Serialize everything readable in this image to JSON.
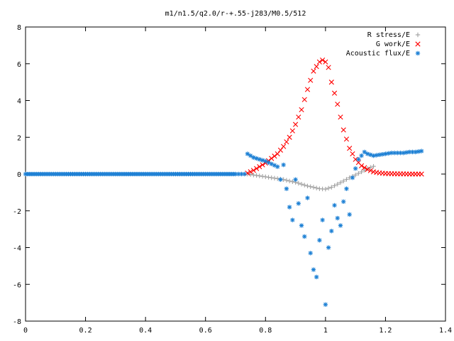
{
  "chart_data": {
    "type": "scatter",
    "title": "m1/n1.5/q2.0/r-+.55-j283/M0.5/512",
    "xlabel": "",
    "ylabel": "",
    "xlim": [
      0,
      1.4
    ],
    "ylim": [
      -8,
      8
    ],
    "x_ticks": [
      "0",
      "0.2",
      "0.4",
      "0.6",
      "0.8",
      "1",
      "1.2",
      "1.4"
    ],
    "y_ticks": [
      "8",
      "6",
      "4",
      "2",
      "0",
      "-2",
      "-4",
      "-6",
      "-8"
    ],
    "grid": false,
    "legend_position": "top-right",
    "series": [
      {
        "name": "R stress/E",
        "marker": "plus",
        "color": "#a0a0a0",
        "x": [
          0.74,
          0.76,
          0.78,
          0.8,
          0.82,
          0.84,
          0.86,
          0.88,
          0.9,
          0.92,
          0.94,
          0.96,
          0.98,
          1.0,
          1.02,
          1.04,
          1.06,
          1.08,
          1.1,
          1.12,
          1.14,
          1.16
        ],
        "y": [
          0.0,
          -0.05,
          -0.1,
          -0.15,
          -0.2,
          -0.25,
          -0.3,
          -0.38,
          -0.45,
          -0.55,
          -0.65,
          -0.72,
          -0.8,
          -0.82,
          -0.72,
          -0.55,
          -0.38,
          -0.2,
          -0.05,
          0.12,
          0.3,
          0.42
        ]
      },
      {
        "name": "G work/E",
        "marker": "cross",
        "color": "#ff0000",
        "x": [
          0.74,
          0.76,
          0.78,
          0.8,
          0.82,
          0.84,
          0.86,
          0.88,
          0.9,
          0.92,
          0.94,
          0.96,
          0.98,
          0.99,
          1.0,
          1.01,
          1.02,
          1.04,
          1.06,
          1.08,
          1.1,
          1.12,
          1.14,
          1.16,
          1.18,
          1.2,
          1.22,
          1.24,
          1.26,
          1.28,
          1.3,
          1.32
        ],
        "y": [
          0.05,
          0.2,
          0.4,
          0.6,
          0.85,
          1.1,
          1.5,
          2.0,
          2.7,
          3.5,
          4.6,
          5.6,
          6.1,
          6.2,
          6.1,
          5.8,
          5.0,
          3.8,
          2.4,
          1.4,
          0.8,
          0.45,
          0.25,
          0.12,
          0.06,
          0.03,
          0.02,
          0.01,
          0.01,
          0.0,
          0.0,
          0.0
        ],
        "note_dense": true
      },
      {
        "name": "Acoustic flux/E",
        "marker": "star",
        "color": "#1b7fd4",
        "x": [
          0.0,
          0.05,
          0.1,
          0.15,
          0.2,
          0.25,
          0.3,
          0.35,
          0.4,
          0.45,
          0.5,
          0.55,
          0.6,
          0.65,
          0.7,
          0.72,
          0.73,
          0.74,
          0.76,
          0.78,
          0.8,
          0.82,
          0.84,
          0.85,
          0.86,
          0.87,
          0.88,
          0.89,
          0.9,
          0.91,
          0.92,
          0.93,
          0.94,
          0.95,
          0.96,
          0.97,
          0.98,
          0.99,
          1.0,
          1.01,
          1.02,
          1.03,
          1.04,
          1.05,
          1.06,
          1.07,
          1.08,
          1.09,
          1.1,
          1.11,
          1.12,
          1.13,
          1.14,
          1.16,
          1.18,
          1.2,
          1.22,
          1.24,
          1.26,
          1.28,
          1.3,
          1.32
        ],
        "y": [
          0,
          0,
          0,
          0,
          0,
          0,
          0,
          0,
          0,
          0,
          0,
          0,
          0,
          0,
          0,
          0,
          0,
          1.1,
          0.9,
          0.8,
          0.7,
          0.55,
          0.4,
          -0.3,
          0.5,
          -0.8,
          -1.8,
          -2.5,
          -0.3,
          -1.6,
          -2.8,
          -3.4,
          -1.3,
          -4.3,
          -5.2,
          -5.6,
          -3.6,
          -2.5,
          -7.1,
          -4.0,
          -3.1,
          -1.7,
          -2.4,
          -2.8,
          -1.5,
          -0.8,
          -2.2,
          -0.2,
          0.3,
          0.8,
          1.0,
          1.2,
          1.1,
          1.0,
          1.05,
          1.1,
          1.15,
          1.15,
          1.15,
          1.2,
          1.2,
          1.25
        ]
      }
    ]
  }
}
